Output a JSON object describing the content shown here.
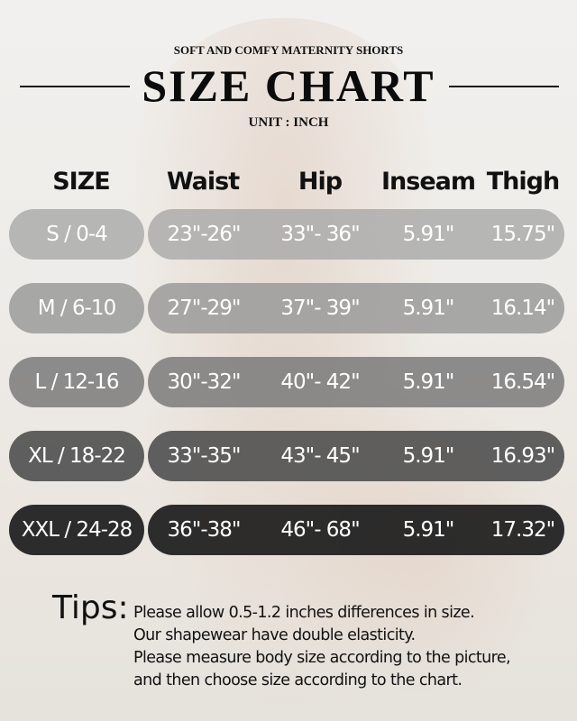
{
  "subtitle": "SOFT AND COMFY MATERNITY SHORTS",
  "title": "SIZE CHART",
  "unit": "UNIT : INCH",
  "headers": [
    "SIZE",
    "Waist",
    "Hip",
    "Inseam",
    "Thigh"
  ],
  "rows": [
    {
      "size": "S / 0-4",
      "waist": "23\"-26\"",
      "hip": "33\"- 36\"",
      "inseam": "5.91\"",
      "thigh": "15.75\"",
      "color": "#a9a9a9"
    },
    {
      "size": "M / 6-10",
      "waist": "27\"-29\"",
      "hip": "37\"- 39\"",
      "inseam": "5.91\"",
      "thigh": "16.14\"",
      "color": "#979797"
    },
    {
      "size": "L / 12-16",
      "waist": "30\"-32\"",
      "hip": "40\"- 42\"",
      "inseam": "5.91\"",
      "thigh": "16.54\"",
      "color": "#767676"
    },
    {
      "size": "XL / 18-22",
      "waist": "33\"-35\"",
      "hip": "43\"- 45\"",
      "inseam": "5.91\"",
      "thigh": "16.93\"",
      "color": "#525252"
    },
    {
      "size": "XXL / 24-28",
      "waist": "36\"-38\"",
      "hip": "46\"- 68\"",
      "inseam": "5.91\"",
      "thigh": "17.32\"",
      "color": "#1c1c1c"
    }
  ],
  "tips": {
    "label": "Tips:",
    "lines": [
      "Please allow 0.5-1.2 inches differences in size.",
      "Our shapewear have double elasticity.",
      "Please measure body size according to the picture,",
      "and then choose size according to the chart."
    ]
  }
}
